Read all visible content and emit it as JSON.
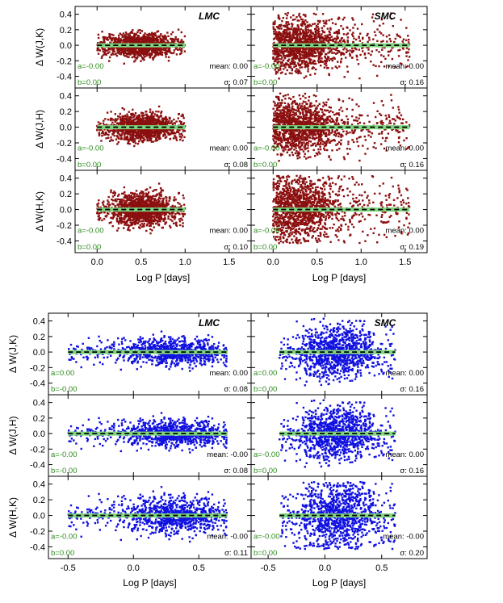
{
  "chart_data": {
    "type": "scatter",
    "title": "",
    "colors": {
      "top": "#8b0f0f",
      "bottom": "#1010e0",
      "fit": "#000000",
      "band": "#7fd87f",
      "coef": "#2e8b1e"
    },
    "blocks": [
      {
        "name": "top",
        "xlabel": "Log P [days]",
        "xlim": [
          -0.25,
          1.75
        ],
        "xticks": [
          0.0,
          0.5,
          1.0,
          1.5
        ],
        "xtick_labels": [
          "0.0",
          "0.5",
          "1.0",
          "1.5"
        ],
        "ylim": [
          -0.55,
          0.5
        ],
        "yticks": [
          -0.4,
          -0.2,
          0.0,
          0.2,
          0.4
        ],
        "ytick_labels": [
          "-0.4",
          "-0.2",
          "0.0",
          "0.2",
          "0.4"
        ],
        "columns": [
          "LMC",
          "SMC"
        ],
        "rows": [
          {
            "ylabel": "Δ W(J,K)",
            "panels": [
              {
                "galaxy": "LMC",
                "tag": "LMC",
                "a": "a=-0.00",
                "b": "b=0.00",
                "mean": "mean: 0.00",
                "sigma": "σ: 0.07",
                "x_range": [
                  0.0,
                  1.0
                ],
                "x_peak": 0.5,
                "spread": 0.07,
                "n": 1300
              },
              {
                "galaxy": "SMC",
                "tag": "SMC",
                "a": "a=-0.00",
                "b": "b=0.00",
                "mean": "mean: 0.00",
                "sigma": "σ: 0.16",
                "x_range": [
                  0.0,
                  1.55
                ],
                "x_peak": 0.25,
                "spread": 0.16,
                "n": 1400
              }
            ]
          },
          {
            "ylabel": "Δ W(J,H)",
            "panels": [
              {
                "galaxy": "LMC",
                "tag": "",
                "a": "a=-0.00",
                "b": "b=0.00",
                "mean": "mean: 0.00",
                "sigma": "σ: 0.08",
                "x_range": [
                  0.0,
                  1.0
                ],
                "x_peak": 0.5,
                "spread": 0.08,
                "n": 1300
              },
              {
                "galaxy": "SMC",
                "tag": "",
                "a": "a=-0.00",
                "b": "b=0.00",
                "mean": "mean: 0.00",
                "sigma": "σ: 0.16",
                "x_range": [
                  0.0,
                  1.55
                ],
                "x_peak": 0.25,
                "spread": 0.16,
                "n": 1400
              }
            ]
          },
          {
            "ylabel": "Δ W(H,K)",
            "panels": [
              {
                "galaxy": "LMC",
                "tag": "",
                "a": "a=-0.00",
                "b": "b=0.00",
                "mean": "mean: 0.00",
                "sigma": "σ: 0.10",
                "x_range": [
                  0.0,
                  1.0
                ],
                "x_peak": 0.5,
                "spread": 0.1,
                "n": 1300
              },
              {
                "galaxy": "SMC",
                "tag": "",
                "a": "a=-0.00",
                "b": "b=0.00",
                "mean": "mean: 0.00",
                "sigma": "σ: 0.19",
                "x_range": [
                  0.0,
                  1.55
                ],
                "x_peak": 0.25,
                "spread": 0.19,
                "n": 1400
              }
            ]
          }
        ]
      },
      {
        "name": "bottom",
        "xlabel": "Log P [days]",
        "xlim": [
          -0.65,
          0.9
        ],
        "xticks": [
          -0.5,
          0.0,
          0.5
        ],
        "xtick_labels": [
          "-0.5",
          "0.0",
          "0.5"
        ],
        "ylim": [
          -0.55,
          0.5
        ],
        "yticks": [
          -0.4,
          -0.2,
          0.0,
          0.2,
          0.4
        ],
        "ytick_labels": [
          "-0.4",
          "-0.2",
          "0.0",
          "0.2",
          "0.4"
        ],
        "columns": [
          "LMC",
          "SMC"
        ],
        "rows": [
          {
            "ylabel": "Δ W(J,K)",
            "panels": [
              {
                "galaxy": "LMC",
                "tag": "LMC",
                "a": "a=0.00",
                "b": "b=-0.00",
                "mean": "mean: 0.00",
                "sigma": "σ: 0.08",
                "x_range": [
                  -0.5,
                  0.72
                ],
                "x_peak": 0.3,
                "spread": 0.08,
                "n": 1000
              },
              {
                "galaxy": "SMC",
                "tag": "SMC",
                "a": "a=0.00",
                "b": "b=0.00",
                "mean": "mean: 0.00",
                "sigma": "σ: 0.16",
                "x_range": [
                  -0.4,
                  0.62
                ],
                "x_peak": 0.1,
                "spread": 0.16,
                "n": 1100
              }
            ]
          },
          {
            "ylabel": "Δ W(J,H)",
            "panels": [
              {
                "galaxy": "LMC",
                "tag": "",
                "a": "a=-0.00",
                "b": "b=-0.00",
                "mean": "mean: -0.00",
                "sigma": "σ: 0.08",
                "x_range": [
                  -0.5,
                  0.72
                ],
                "x_peak": 0.3,
                "spread": 0.08,
                "n": 1000
              },
              {
                "galaxy": "SMC",
                "tag": "",
                "a": "a=-0.00",
                "b": "b=0.00",
                "mean": "mean: 0.00",
                "sigma": "σ: 0.16",
                "x_range": [
                  -0.4,
                  0.62
                ],
                "x_peak": 0.1,
                "spread": 0.16,
                "n": 1100
              }
            ]
          },
          {
            "ylabel": "Δ W(H,K)",
            "panels": [
              {
                "galaxy": "LMC",
                "tag": "",
                "a": "a=-0.00",
                "b": "b=0.00",
                "mean": "mean: -0.00",
                "sigma": "σ: 0.11",
                "x_range": [
                  -0.5,
                  0.72
                ],
                "x_peak": 0.3,
                "spread": 0.11,
                "n": 1000
              },
              {
                "galaxy": "SMC",
                "tag": "",
                "a": "a=-0.00",
                "b": "b=0.00",
                "mean": "mean: -0.00",
                "sigma": "σ: 0.20",
                "x_range": [
                  -0.4,
                  0.62
                ],
                "x_peak": 0.1,
                "spread": 0.2,
                "n": 1100
              }
            ]
          }
        ]
      }
    ]
  }
}
